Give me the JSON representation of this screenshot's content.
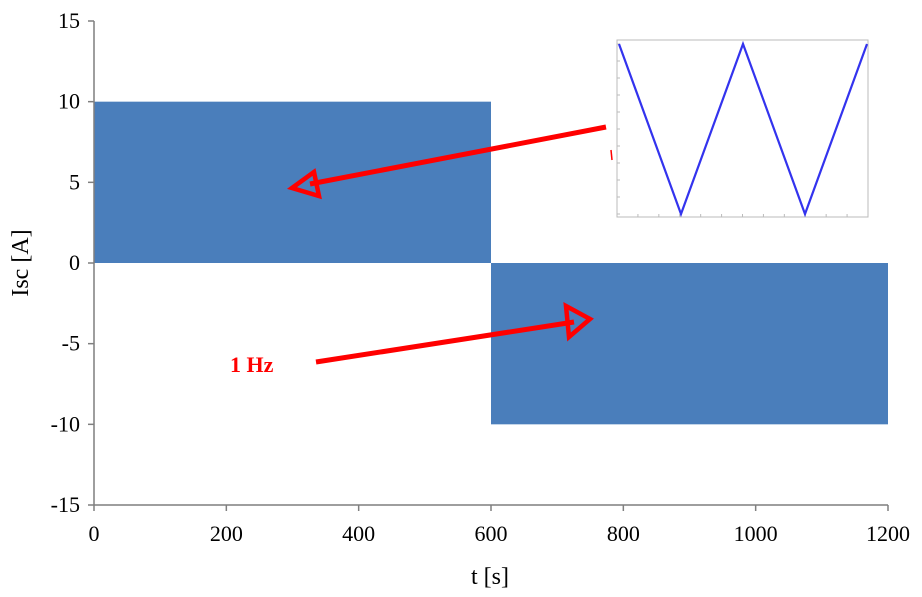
{
  "chart_data": {
    "type": "area",
    "xlabel": "t [s]",
    "ylabel": "Isc [A]",
    "xlim": [
      0,
      1200
    ],
    "ylim": [
      -15,
      15
    ],
    "xticks": [
      0,
      200,
      400,
      600,
      800,
      1000,
      1200
    ],
    "yticks": [
      -15,
      -10,
      -5,
      0,
      5,
      10,
      15
    ],
    "grid": false,
    "series": [
      {
        "values": [
          {
            "t_start": 0,
            "t_end": 600,
            "min": 0,
            "max": 10
          },
          {
            "t_start": 600,
            "t_end": 1200,
            "min": -10,
            "max": 0
          }
        ],
        "signal": "triangular wave",
        "color": "#4a7ebb"
      }
    ],
    "annotations": [
      {
        "text": "1 Hz",
        "color": "#ff0000"
      }
    ],
    "inset": {
      "type": "line",
      "description": "zoomed triangular waveform",
      "color": "#3333ee",
      "vertices_norm": [
        [
          0,
          1
        ],
        [
          0.25,
          0
        ],
        [
          0.5,
          1
        ],
        [
          0.75,
          0
        ],
        [
          1,
          1
        ]
      ]
    }
  }
}
